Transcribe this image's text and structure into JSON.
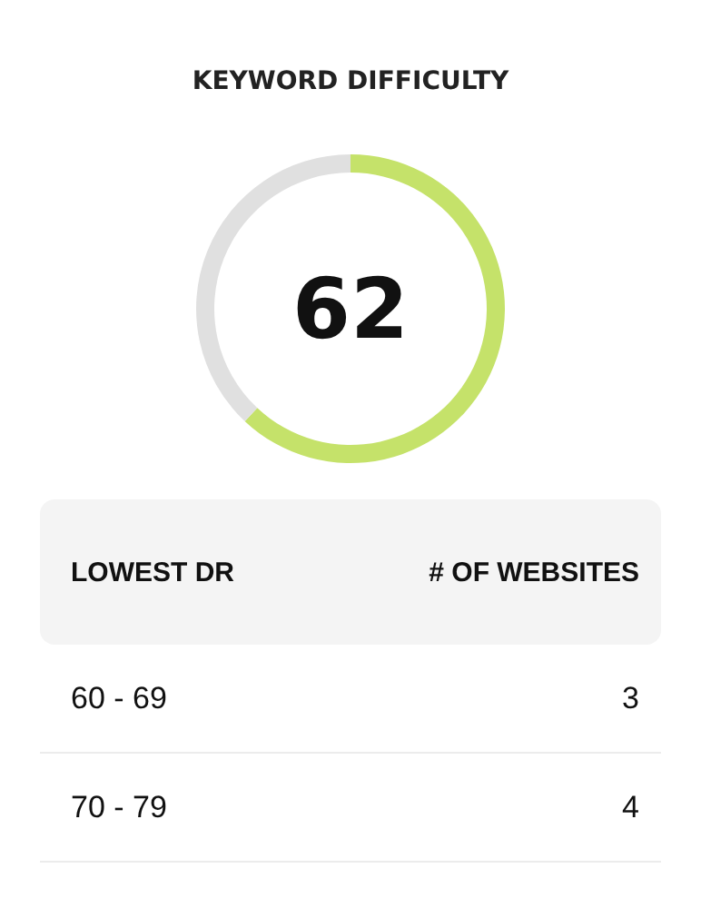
{
  "chart_data": [
    {
      "type": "donut",
      "title": "KEYWORD DIFFICULTY",
      "categories": [
        null,
        null
      ],
      "values": [
        62,
        38
      ],
      "colors": [
        "#c5e26a",
        "#e0e0e0"
      ],
      "value_labels": [
        "62",
        null
      ]
    },
    {
      "type": "other",
      "annotations": [
        "LOWEST DR",
        "# OF WEBSITES",
        "60 - 69",
        "3",
        "70 - 79",
        "4"
      ]
    }
  ]
}
